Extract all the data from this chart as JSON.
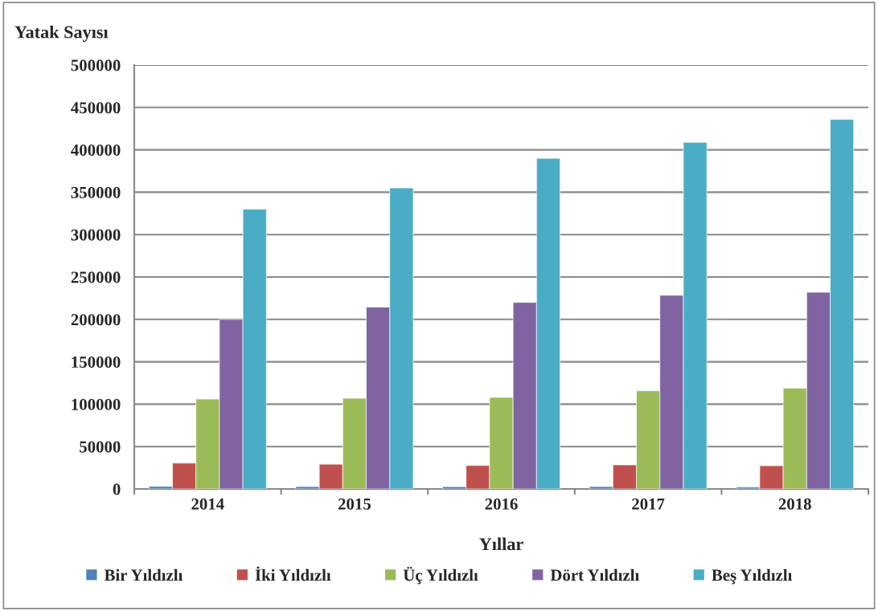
{
  "chart_data": {
    "type": "bar",
    "xlabel": "Yıllar",
    "ylabel": "Yatak Sayısı",
    "categories": [
      "2014",
      "2015",
      "2016",
      "2017",
      "2018"
    ],
    "series": [
      {
        "name": "Bir Yıldızlı",
        "color": "#4f81bd",
        "values": [
          3000,
          2800,
          2700,
          2800,
          2200
        ]
      },
      {
        "name": "İki Yıldızlı",
        "color": "#c0504d",
        "values": [
          30500,
          29200,
          27700,
          28400,
          27400
        ]
      },
      {
        "name": "Üç Yıldızlı",
        "color": "#9bbb59",
        "values": [
          106000,
          107000,
          108000,
          115800,
          118900
        ]
      },
      {
        "name": "Dört Yıldızlı",
        "color": "#8064a2",
        "values": [
          200000,
          214500,
          220000,
          228400,
          232000
        ]
      },
      {
        "name": "Beş Yıldızlı",
        "color": "#4bacc6",
        "values": [
          330000,
          355000,
          390000,
          408800,
          435900
        ]
      }
    ],
    "ylim": [
      0,
      500000
    ],
    "yticks": [
      0,
      50000,
      100000,
      150000,
      200000,
      250000,
      300000,
      350000,
      400000,
      450000,
      500000
    ],
    "grid": "y",
    "legend": "bottom"
  }
}
